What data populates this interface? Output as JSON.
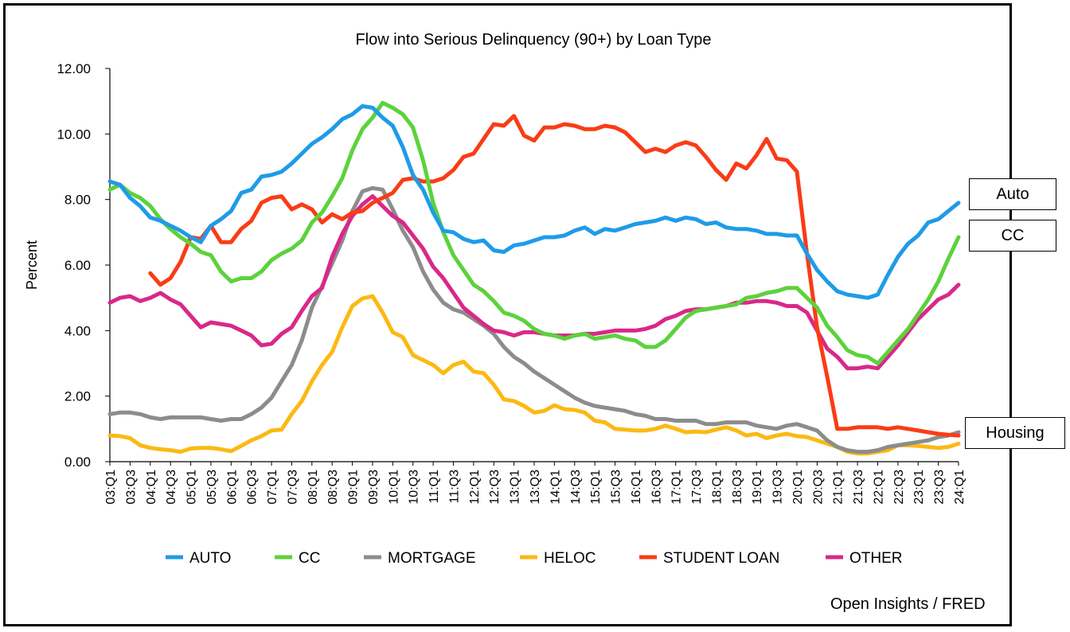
{
  "chart_data": {
    "type": "line",
    "title": "Flow into Serious Delinquency (90+) by Loan Type",
    "xlabel": "",
    "ylabel": "Percent",
    "ylim": [
      0,
      12
    ],
    "yticks": [
      "0.00",
      "2.00",
      "4.00",
      "6.00",
      "8.00",
      "10.00",
      "12.00"
    ],
    "grid": false,
    "legend_position": "bottom",
    "x_tick_labels": [
      "03:Q1",
      "03:Q3",
      "04:Q1",
      "04:Q3",
      "05:Q1",
      "05:Q3",
      "06:Q1",
      "06:Q3",
      "07:Q1",
      "07:Q3",
      "08:Q1",
      "08:Q3",
      "09:Q1",
      "09:Q3",
      "10:Q1",
      "10:Q3",
      "11:Q1",
      "11:Q3",
      "12:Q1",
      "12:Q3",
      "13:Q1",
      "13:Q3",
      "14:Q1",
      "14:Q3",
      "15:Q1",
      "15:Q3",
      "16:Q1",
      "16:Q3",
      "17:Q1",
      "17:Q3",
      "18:Q1",
      "18:Q3",
      "19:Q1",
      "19:Q3",
      "20:Q1",
      "20:Q3",
      "21:Q1",
      "21:Q3",
      "22:Q1",
      "22:Q3",
      "23:Q1",
      "23:Q3",
      "24:Q1"
    ],
    "x": [
      "03:Q1",
      "03:Q2",
      "03:Q3",
      "03:Q4",
      "04:Q1",
      "04:Q2",
      "04:Q3",
      "04:Q4",
      "05:Q1",
      "05:Q2",
      "05:Q3",
      "05:Q4",
      "06:Q1",
      "06:Q2",
      "06:Q3",
      "06:Q4",
      "07:Q1",
      "07:Q2",
      "07:Q3",
      "07:Q4",
      "08:Q1",
      "08:Q2",
      "08:Q3",
      "08:Q4",
      "09:Q1",
      "09:Q2",
      "09:Q3",
      "09:Q4",
      "10:Q1",
      "10:Q2",
      "10:Q3",
      "10:Q4",
      "11:Q1",
      "11:Q2",
      "11:Q3",
      "11:Q4",
      "12:Q1",
      "12:Q2",
      "12:Q3",
      "12:Q4",
      "13:Q1",
      "13:Q2",
      "13:Q3",
      "13:Q4",
      "14:Q1",
      "14:Q2",
      "14:Q3",
      "14:Q4",
      "15:Q1",
      "15:Q2",
      "15:Q3",
      "15:Q4",
      "16:Q1",
      "16:Q2",
      "16:Q3",
      "16:Q4",
      "17:Q1",
      "17:Q2",
      "17:Q3",
      "17:Q4",
      "18:Q1",
      "18:Q2",
      "18:Q3",
      "18:Q4",
      "19:Q1",
      "19:Q2",
      "19:Q3",
      "19:Q4",
      "20:Q1",
      "20:Q2",
      "20:Q3",
      "20:Q4",
      "21:Q1",
      "21:Q2",
      "21:Q3",
      "21:Q4",
      "22:Q1",
      "22:Q2",
      "22:Q3",
      "22:Q4",
      "23:Q1",
      "23:Q2",
      "23:Q3",
      "23:Q4",
      "24:Q1"
    ],
    "series": [
      {
        "name": "AUTO",
        "color": "#1f9be8",
        "values": [
          8.55,
          8.45,
          8.05,
          7.8,
          7.45,
          7.35,
          7.2,
          7.05,
          6.85,
          6.7,
          7.2,
          7.4,
          7.65,
          8.2,
          8.3,
          8.7,
          8.75,
          8.85,
          9.1,
          9.4,
          9.7,
          9.9,
          10.15,
          10.45,
          10.6,
          10.85,
          10.8,
          10.5,
          10.25,
          9.6,
          8.75,
          8.3,
          7.6,
          7.05,
          7.0,
          6.8,
          6.7,
          6.75,
          6.45,
          6.4,
          6.6,
          6.65,
          6.75,
          6.85,
          6.85,
          6.9,
          7.05,
          7.15,
          6.95,
          7.1,
          7.05,
          7.15,
          7.25,
          7.3,
          7.35,
          7.45,
          7.35,
          7.45,
          7.4,
          7.25,
          7.3,
          7.15,
          7.1,
          7.1,
          7.05,
          6.95,
          6.95,
          6.9,
          6.9,
          6.35,
          5.85,
          5.5,
          5.2,
          5.1,
          5.05,
          5.0,
          5.1,
          5.7,
          6.25,
          6.65,
          6.9,
          7.3,
          7.4,
          7.65,
          7.9
        ]
      },
      {
        "name": "CC",
        "color": "#5cd23c",
        "values": [
          8.3,
          8.45,
          8.2,
          8.05,
          7.8,
          7.4,
          7.1,
          6.85,
          6.65,
          6.4,
          6.3,
          5.8,
          5.5,
          5.6,
          5.6,
          5.8,
          6.15,
          6.35,
          6.5,
          6.75,
          7.3,
          7.6,
          8.1,
          8.65,
          9.5,
          10.15,
          10.5,
          10.95,
          10.8,
          10.6,
          10.2,
          9.2,
          7.9,
          7.0,
          6.3,
          5.85,
          5.4,
          5.2,
          4.9,
          4.55,
          4.45,
          4.3,
          4.05,
          3.9,
          3.85,
          3.75,
          3.85,
          3.9,
          3.75,
          3.8,
          3.85,
          3.75,
          3.7,
          3.5,
          3.5,
          3.7,
          4.05,
          4.4,
          4.6,
          4.65,
          4.7,
          4.75,
          4.8,
          5.0,
          5.05,
          5.15,
          5.2,
          5.3,
          5.3,
          5.0,
          4.7,
          4.15,
          3.8,
          3.4,
          3.25,
          3.2,
          3.0,
          3.35,
          3.7,
          4.05,
          4.5,
          4.95,
          5.5,
          6.2,
          6.85
        ]
      },
      {
        "name": "MORTGAGE",
        "color": "#8c8c8c",
        "values": [
          1.45,
          1.5,
          1.5,
          1.45,
          1.35,
          1.3,
          1.35,
          1.35,
          1.35,
          1.35,
          1.3,
          1.25,
          1.3,
          1.3,
          1.45,
          1.65,
          1.95,
          2.45,
          2.95,
          3.7,
          4.7,
          5.35,
          6.05,
          6.75,
          7.65,
          8.25,
          8.35,
          8.3,
          7.7,
          7.05,
          6.55,
          5.8,
          5.25,
          4.85,
          4.65,
          4.55,
          4.35,
          4.15,
          3.9,
          3.5,
          3.2,
          3.0,
          2.75,
          2.55,
          2.35,
          2.15,
          1.95,
          1.8,
          1.7,
          1.65,
          1.6,
          1.55,
          1.45,
          1.4,
          1.3,
          1.3,
          1.25,
          1.25,
          1.25,
          1.15,
          1.15,
          1.2,
          1.2,
          1.2,
          1.1,
          1.05,
          1.0,
          1.1,
          1.15,
          1.05,
          0.95,
          0.65,
          0.45,
          0.35,
          0.3,
          0.3,
          0.35,
          0.45,
          0.5,
          0.55,
          0.6,
          0.65,
          0.75,
          0.8,
          0.9
        ]
      },
      {
        "name": "HELOC",
        "color": "#fbb913",
        "values": [
          0.8,
          0.78,
          0.72,
          0.5,
          0.42,
          0.38,
          0.35,
          0.3,
          0.4,
          0.42,
          0.42,
          0.38,
          0.32,
          0.48,
          0.65,
          0.78,
          0.95,
          0.98,
          1.45,
          1.85,
          2.45,
          2.95,
          3.35,
          4.1,
          4.75,
          4.98,
          5.05,
          4.55,
          3.95,
          3.8,
          3.25,
          3.1,
          2.95,
          2.7,
          2.95,
          3.05,
          2.75,
          2.7,
          2.35,
          1.9,
          1.85,
          1.7,
          1.5,
          1.55,
          1.72,
          1.6,
          1.58,
          1.5,
          1.25,
          1.2,
          1.0,
          0.98,
          0.95,
          0.95,
          1.0,
          1.1,
          1.0,
          0.9,
          0.92,
          0.9,
          0.98,
          1.05,
          0.95,
          0.8,
          0.85,
          0.72,
          0.8,
          0.85,
          0.78,
          0.75,
          0.65,
          0.55,
          0.45,
          0.3,
          0.25,
          0.25,
          0.3,
          0.35,
          0.5,
          0.5,
          0.48,
          0.45,
          0.42,
          0.45,
          0.55
        ]
      },
      {
        "name": "STUDENT LOAN",
        "color": "#f93c16",
        "values": [
          null,
          null,
          null,
          null,
          5.75,
          5.4,
          5.6,
          6.1,
          6.85,
          6.8,
          7.2,
          6.7,
          6.7,
          7.1,
          7.35,
          7.9,
          8.05,
          8.1,
          7.7,
          7.85,
          7.7,
          7.3,
          7.55,
          7.4,
          7.6,
          7.65,
          7.9,
          8.05,
          8.2,
          8.6,
          8.65,
          8.55,
          8.55,
          8.65,
          8.9,
          9.3,
          9.4,
          9.85,
          10.3,
          10.25,
          10.55,
          9.95,
          9.8,
          10.2,
          10.2,
          10.3,
          10.25,
          10.15,
          10.15,
          10.25,
          10.2,
          10.05,
          9.75,
          9.45,
          9.55,
          9.45,
          9.65,
          9.75,
          9.65,
          9.3,
          8.9,
          8.6,
          9.1,
          8.95,
          9.35,
          9.85,
          9.25,
          9.2,
          8.85,
          6.35,
          4.1,
          2.6,
          1.0,
          1.0,
          1.05,
          1.05,
          1.05,
          1.0,
          1.05,
          1.0,
          0.95,
          0.9,
          0.85,
          0.82,
          0.8
        ]
      },
      {
        "name": "OTHER",
        "color": "#d9288a",
        "values": [
          4.85,
          5.0,
          5.05,
          4.9,
          5.0,
          5.15,
          4.95,
          4.8,
          4.45,
          4.1,
          4.25,
          4.2,
          4.15,
          4.0,
          3.85,
          3.55,
          3.6,
          3.9,
          4.1,
          4.6,
          5.05,
          5.3,
          6.25,
          6.95,
          7.5,
          7.85,
          8.1,
          7.8,
          7.5,
          7.3,
          6.9,
          6.5,
          5.95,
          5.6,
          5.15,
          4.7,
          4.45,
          4.2,
          4.0,
          3.95,
          3.85,
          3.95,
          3.95,
          3.9,
          3.85,
          3.85,
          3.85,
          3.9,
          3.9,
          3.95,
          4.0,
          4.0,
          4.0,
          4.05,
          4.15,
          4.35,
          4.45,
          4.6,
          4.65,
          4.65,
          4.7,
          4.75,
          4.85,
          4.85,
          4.9,
          4.9,
          4.85,
          4.75,
          4.75,
          4.55,
          4.0,
          3.45,
          3.2,
          2.85,
          2.85,
          2.9,
          2.85,
          3.2,
          3.55,
          3.95,
          4.35,
          4.65,
          4.95,
          5.1,
          5.4
        ]
      }
    ]
  },
  "callouts": {
    "auto": "Auto",
    "cc": "CC",
    "housing": "Housing"
  },
  "source": "Open Insights / FRED"
}
